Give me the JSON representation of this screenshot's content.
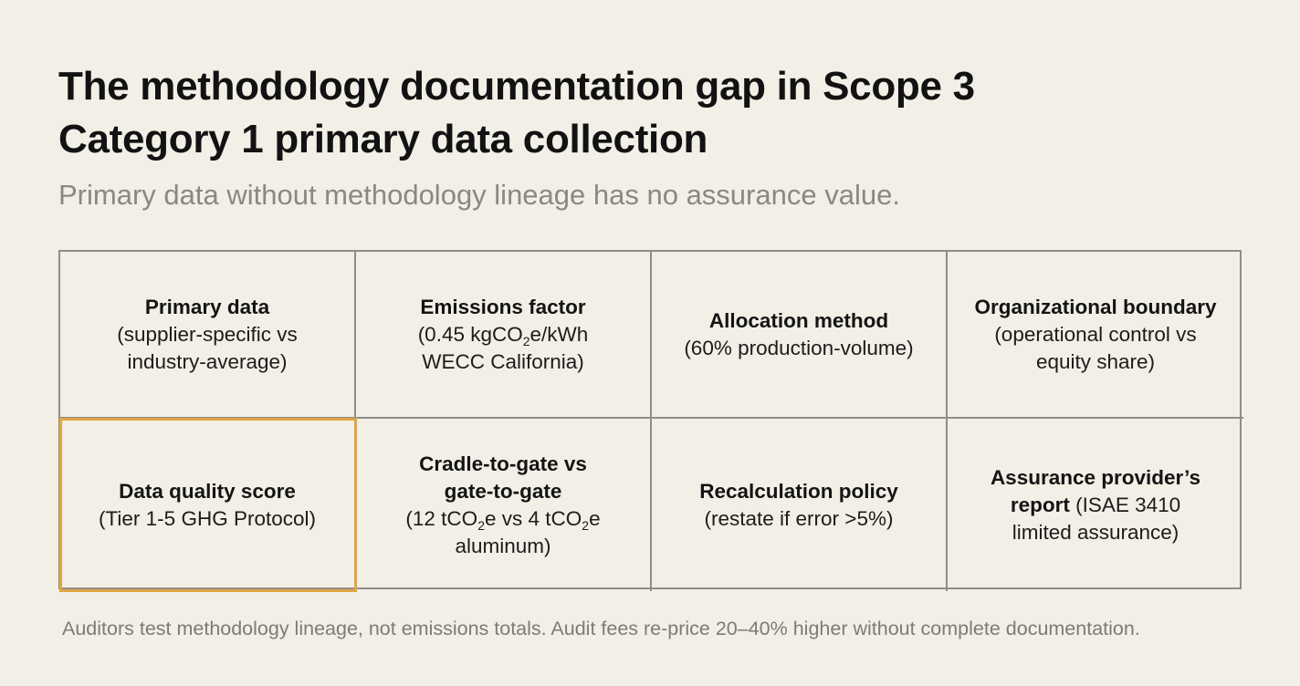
{
  "title": {
    "line1": "The methodology documentation gap in Scope 3",
    "line2": "Category 1 primary data collection"
  },
  "subtitle": "Primary data without methodology lineage has no assurance value.",
  "cells": {
    "primary_data": {
      "label": "Primary data",
      "detail_line1": "(supplier-specific vs",
      "detail_line2": "industry-average)"
    },
    "emissions_factor": {
      "label": "Emissions factor",
      "detail_pre": "(0.45 kgCO",
      "detail_sub": "2",
      "detail_post": "e/kWh",
      "detail_line2": "WECC California)"
    },
    "allocation_method": {
      "label": "Allocation method",
      "detail_line1": "(60% production-volume)"
    },
    "organizational_boundary": {
      "label": "Organizational boundary",
      "detail_line1": "(operational control vs",
      "detail_line2": "equity share)"
    },
    "data_quality_score": {
      "label": "Data quality score",
      "detail_line1": "(Tier 1-5 GHG Protocol)"
    },
    "cradle_to_gate": {
      "label_line1": "Cradle-to-gate vs",
      "label_line2": "gate-to-gate",
      "detail_a": "(12 tCO",
      "detail_sub_a": "2",
      "detail_b": "e vs 4 tCO",
      "detail_sub_b": "2",
      "detail_c": "e",
      "detail_line2": "aluminum)"
    },
    "recalculation_policy": {
      "label": "Recalculation policy",
      "detail_line1": "(restate if error >5%)"
    },
    "assurance_report": {
      "label_line1": "Assurance provider’s",
      "label_line2": "report",
      "detail_inline": " (ISAE 3410",
      "detail_line2": "limited assurance)"
    }
  },
  "footer": "Auditors test methodology lineage, not emissions totals. Audit fees re-price 20–40% higher without complete documentation.",
  "colors": {
    "background": "#f2efe6",
    "grid_line": "#8f8d89",
    "highlight": "#e0a545",
    "subtitle": "#8a8884",
    "footer": "#7d7b77"
  }
}
